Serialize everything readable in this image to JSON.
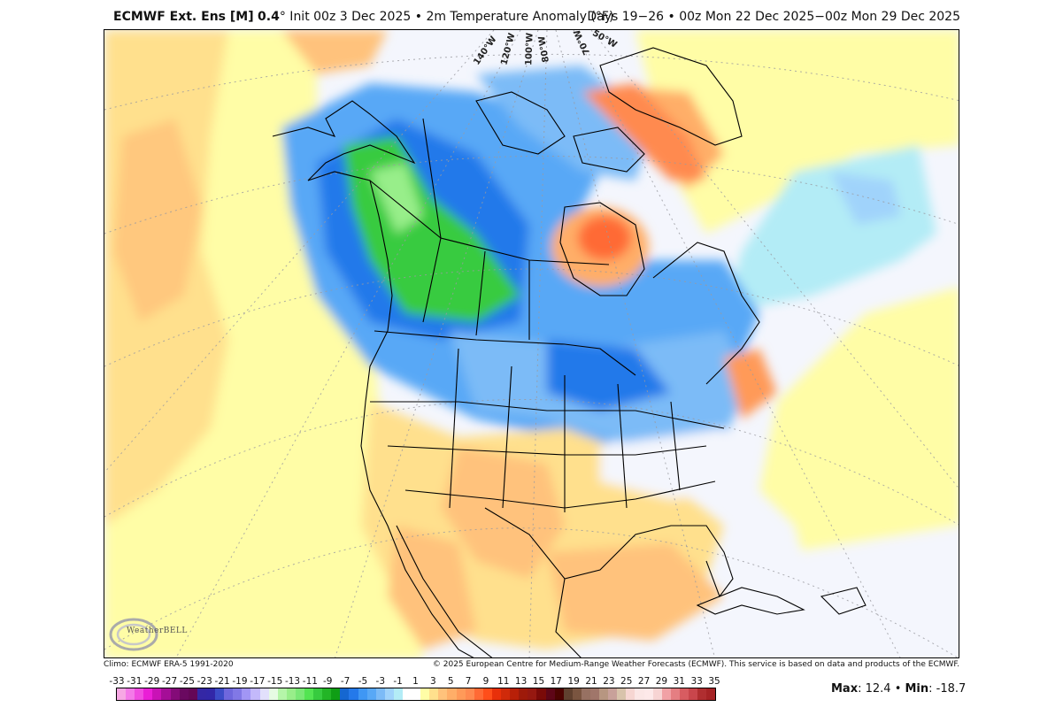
{
  "header": {
    "model": "ECMWF Ext. Ens [M]",
    "resolution": "0.4",
    "degree_symbol": "°",
    "init": " Init 00z 3 Dec 2025 • 2m Temperature Anomaly (°F)",
    "valid": "Days 19−26 • 00z Mon 22 Dec 2025−00z Mon 29 Dec 2025"
  },
  "map": {
    "projection": "polar stereographic, North America",
    "longitude_labels": [
      "140°W",
      "120°W",
      "100°W",
      "80°W",
      "70°W",
      "50°W"
    ],
    "features": {
      "cold_core": "Western/central Canada (green, -9 to -15°F); Alaska Panhandle/BC interior to -17°F",
      "cold_secondary": "Northern Plains, Upper Midwest, Great Lakes, Northeast US (blue, -3 to -7°F)",
      "warm_cores": "Hudson Bay (red, +9 to +13°F); Baffin Bay / NW Greenland (red, +9 to +13°F)",
      "warm_secondary": "Southern Plains, Texas, Southwest, Mexico, Gulf of Mexico (orange, +3 to +5°F)",
      "neutral": "Eastern Pacific & western Atlantic near-normal (white/pale blue)"
    }
  },
  "footer": {
    "climo": "Climo: ECMWF ERA-5 1991-2020",
    "copyright": "© 2025 European Centre for Medium-Range Weather Forecasts (ECMWF). This service is based on data and products of the ECMWF.",
    "logo": "WeatherBELL"
  },
  "colorbar": {
    "labels": [
      "-33",
      "-31",
      "-29",
      "-27",
      "-25",
      "-23",
      "-21",
      "-19",
      "-17",
      "-15",
      "-13",
      "-11",
      "-9",
      "-7",
      "-5",
      "-3",
      "-1",
      "1",
      "3",
      "5",
      "7",
      "9",
      "11",
      "13",
      "15",
      "17",
      "19",
      "21",
      "23",
      "25",
      "27",
      "29",
      "31",
      "33",
      "35"
    ],
    "colors": [
      "#f7a8e4",
      "#f47ae8",
      "#f04ce0",
      "#ea1ed6",
      "#c912b6",
      "#a50e97",
      "#840b78",
      "#6a0960",
      "#640757",
      "#3427a5",
      "#3227a8",
      "#3c4bc7",
      "#6f67dd",
      "#8178e6",
      "#a196f5",
      "#c3b9fb",
      "#e2e0fc",
      "#e6fbe3",
      "#b5f5a9",
      "#98ee8a",
      "#7ae876",
      "#53e452",
      "#37cb3f",
      "#23b526",
      "#0f9e15",
      "#1567d1",
      "#2479ea",
      "#3f97f4",
      "#58a8f6",
      "#7cbbf7",
      "#a0d3fb",
      "#b3ecf6",
      "#ffffff",
      "#ffffff",
      "#fffda6",
      "#ffe08d",
      "#ffc27b",
      "#ffae68",
      "#ff9a59",
      "#ff8a50",
      "#ff6a35",
      "#ff4e1a",
      "#e8300a",
      "#d02a0a",
      "#b82008",
      "#9e1a0a",
      "#961810",
      "#7a0a08",
      "#5e0617",
      "#4c0300",
      "#60412f",
      "#7a5540",
      "#977162",
      "#a0766a",
      "#b79681",
      "#c8a19a",
      "#d8c3ab",
      "#f6d6d2",
      "#fbe7e6",
      "#fde9e9",
      "#f7d4d3",
      "#f1a1a5",
      "#e57e82",
      "#d85c61",
      "#c9464c",
      "#b02e30",
      "#a62325"
    ],
    "unit": "°F"
  },
  "stats": {
    "max_label": "Max",
    "max_value": ": 12.4 • ",
    "min_label": "Min",
    "min_value": ": -18.7"
  },
  "chart_data": {
    "type": "heatmap",
    "title": "ECMWF Ext. Ens [M] 0.4° Init 00z 3 Dec 2025 • 2m Temperature Anomaly (°F)",
    "subtitle": "Days 19−26 • 00z Mon 22 Dec 2025−00z Mon 29 Dec 2025",
    "variable": "2m Temperature Anomaly",
    "unit": "°F",
    "colorbar_ticks": [
      -33,
      -31,
      -29,
      -27,
      -25,
      -23,
      -21,
      -19,
      -17,
      -15,
      -13,
      -11,
      -9,
      -7,
      -5,
      -3,
      -1,
      1,
      3,
      5,
      7,
      9,
      11,
      13,
      15,
      17,
      19,
      21,
      23,
      25,
      27,
      29,
      31,
      33,
      35
    ],
    "max": 12.4,
    "min": -18.7,
    "regions": [
      {
        "name": "Hudson Bay",
        "anomaly_approx": 11
      },
      {
        "name": "Baffin Bay / NW Greenland",
        "anomaly_approx": 11
      },
      {
        "name": "Alberta / Saskatchewan / BC interior",
        "anomaly_approx": -11
      },
      {
        "name": "Yukon / northern BC",
        "anomaly_approx": -15
      },
      {
        "name": "Upper Midwest / Great Lakes",
        "anomaly_approx": -6
      },
      {
        "name": "Northern Plains (MT/ND)",
        "anomaly_approx": -5
      },
      {
        "name": "Northeast US",
        "anomaly_approx": -4
      },
      {
        "name": "Texas / Southern Plains",
        "anomaly_approx": 4
      },
      {
        "name": "Gulf of Mexico",
        "anomaly_approx": 4
      },
      {
        "name": "Off Mid-Atlantic coast (Gulf Stream)",
        "anomaly_approx": 7
      },
      {
        "name": "Labrador Sea",
        "anomaly_approx": -4
      },
      {
        "name": "Eastern N. Pacific",
        "anomaly_approx": 3
      }
    ],
    "climatology": "ECMWF ERA-5 1991-2020"
  }
}
